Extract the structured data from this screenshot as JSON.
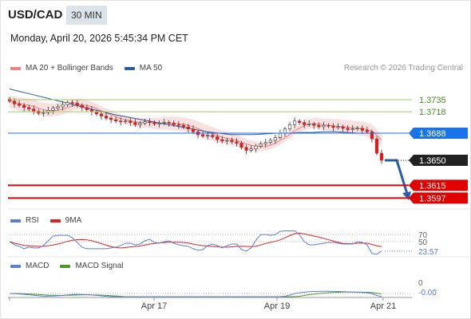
{
  "header": {
    "symbol": "USD/CAD",
    "timeframe": "30 MIN",
    "datetime": "Monday, April 20, 2026 5:45:34 PM CET"
  },
  "price_panel": {
    "legend": [
      {
        "label": "MA 20 + Bollinger Bands",
        "color": "#f08080"
      },
      {
        "label": "MA 50",
        "color": "#2f5b9e"
      }
    ],
    "credit": "Research © 2026 Trading Central"
  },
  "rsi_panel": {
    "legend": [
      {
        "label": "RSI",
        "color": "#5b7fd6"
      },
      {
        "label": "9MA",
        "color": "#e02020"
      }
    ],
    "levels": [
      "70",
      "50"
    ],
    "value": "23.57"
  },
  "macd_panel": {
    "legend": [
      {
        "label": "MACD",
        "color": "#5b7fd6"
      },
      {
        "label": "MACD Signal",
        "color": "#4a9a20"
      }
    ],
    "zero": "0",
    "value": "-0.00"
  },
  "chart_data": {
    "type": "line",
    "levels": [
      {
        "value": 1.3735,
        "label": "1.3735",
        "kind": "resistance",
        "color": "#9ccc65"
      },
      {
        "value": 1.3718,
        "label": "1.3718",
        "kind": "resistance",
        "color": "#9ccc65"
      },
      {
        "value": 1.3688,
        "label": "1.3688",
        "kind": "pivot",
        "color": "#1a73e8"
      },
      {
        "value": 1.365,
        "label": "1.3650",
        "kind": "last",
        "color": "#222222"
      },
      {
        "value": 1.3615,
        "label": "1.3615",
        "kind": "support",
        "color": "#e00000"
      },
      {
        "value": 1.3597,
        "label": "1.3597",
        "kind": "support",
        "color": "#e00000"
      }
    ],
    "x_ticks": [
      "Apr 17",
      "Apr 19",
      "Apr 21"
    ],
    "close": [
      1.3733,
      1.3729,
      1.3727,
      1.3724,
      1.3722,
      1.3719,
      1.3716,
      1.3717,
      1.372,
      1.3723,
      1.3725,
      1.3728,
      1.3731,
      1.373,
      1.3727,
      1.3724,
      1.3721,
      1.3718,
      1.3715,
      1.3712,
      1.3709,
      1.3707,
      1.3705,
      1.3704,
      1.3705,
      1.3703,
      1.37,
      1.3702,
      1.3704,
      1.3703,
      1.3701,
      1.3702,
      1.3703,
      1.3702,
      1.37,
      1.3699,
      1.3697,
      1.3694,
      1.369,
      1.3686,
      1.3684,
      1.3685,
      1.3683,
      1.3679,
      1.3677,
      1.3678,
      1.3676,
      1.3674,
      1.3668,
      1.3664,
      1.3666,
      1.367,
      1.3673,
      1.3675,
      1.3678,
      1.3682,
      1.3688,
      1.3694,
      1.37,
      1.3705,
      1.3703,
      1.37,
      1.3701,
      1.3699,
      1.3697,
      1.3699,
      1.3698,
      1.3696,
      1.3697,
      1.3695,
      1.3693,
      1.3694,
      1.3695,
      1.3692,
      1.369,
      1.368,
      1.366,
      1.365
    ],
    "ma50": [
      1.375,
      1.3746,
      1.3742,
      1.3738,
      1.3734,
      1.373,
      1.3726,
      1.3722,
      1.3718,
      1.3714,
      1.3711,
      1.3708,
      1.3705,
      1.3702,
      1.3699,
      1.3696,
      1.3693,
      1.369,
      1.3688,
      1.3686,
      1.3686,
      1.3686,
      1.3687,
      1.3688,
      1.3688,
      1.3689,
      1.3689,
      1.369,
      1.369,
      1.3689,
      1.3688,
      1.3688,
      1.3688
    ],
    "forecast_arrow": [
      1.365,
      1.3603
    ],
    "rsi_levels": [
      70,
      50
    ],
    "rsi_last": 23.57,
    "macd_last": -0.0
  }
}
